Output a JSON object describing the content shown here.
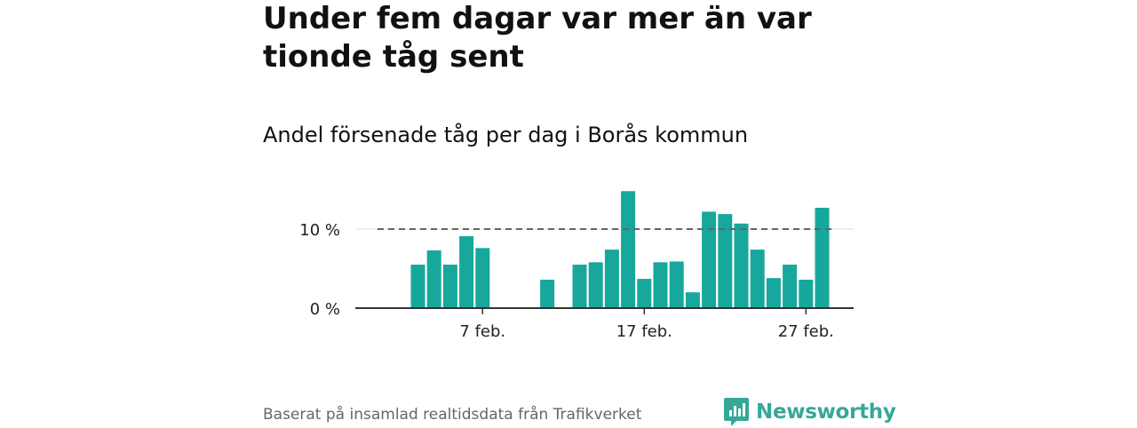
{
  "title": "Under fem dagar var mer än var tionde tåg sent",
  "subtitle": "Andel försenade tåg per dag i Borås kommun",
  "footer": "Baserat på insamlad realtidsdata från Trafikverket",
  "brand": {
    "name": "Newsworthy",
    "icon": "newsworthy-logo-icon",
    "color": "#35a89a"
  },
  "colors": {
    "bar": "#17a79c",
    "reference_line": "#666666",
    "axis": "#333333",
    "grid": "#dddddd"
  },
  "chart_data": {
    "type": "bar",
    "x_dates": [
      "1 feb.",
      "2 feb.",
      "3 feb.",
      "4 feb.",
      "5 feb.",
      "6 feb.",
      "7 feb.",
      "8 feb.",
      "9 feb.",
      "10 feb.",
      "11 feb.",
      "12 feb.",
      "13 feb.",
      "14 feb.",
      "15 feb.",
      "16 feb.",
      "17 feb.",
      "18 feb.",
      "19 feb.",
      "20 feb.",
      "21 feb.",
      "22 feb.",
      "23 feb.",
      "24 feb.",
      "25 feb.",
      "26 feb.",
      "27 feb.",
      "28 feb."
    ],
    "values": [
      null,
      null,
      5.5,
      7.3,
      5.5,
      9.1,
      7.6,
      null,
      null,
      null,
      3.6,
      null,
      5.5,
      5.8,
      7.4,
      14.8,
      3.7,
      5.8,
      5.9,
      2.0,
      12.2,
      11.9,
      10.7,
      7.4,
      3.8,
      5.5,
      3.6,
      12.7
    ],
    "unit": "%",
    "ylim": [
      0,
      15
    ],
    "y_ticks": [
      0,
      10
    ],
    "y_tick_labels": [
      "0 %",
      "10 %"
    ],
    "x_tick_labels": [
      "7 feb.",
      "17 feb.",
      "27 feb."
    ],
    "reference_line": {
      "value": 10,
      "style": "dashed"
    },
    "grid": true,
    "legend": false
  }
}
